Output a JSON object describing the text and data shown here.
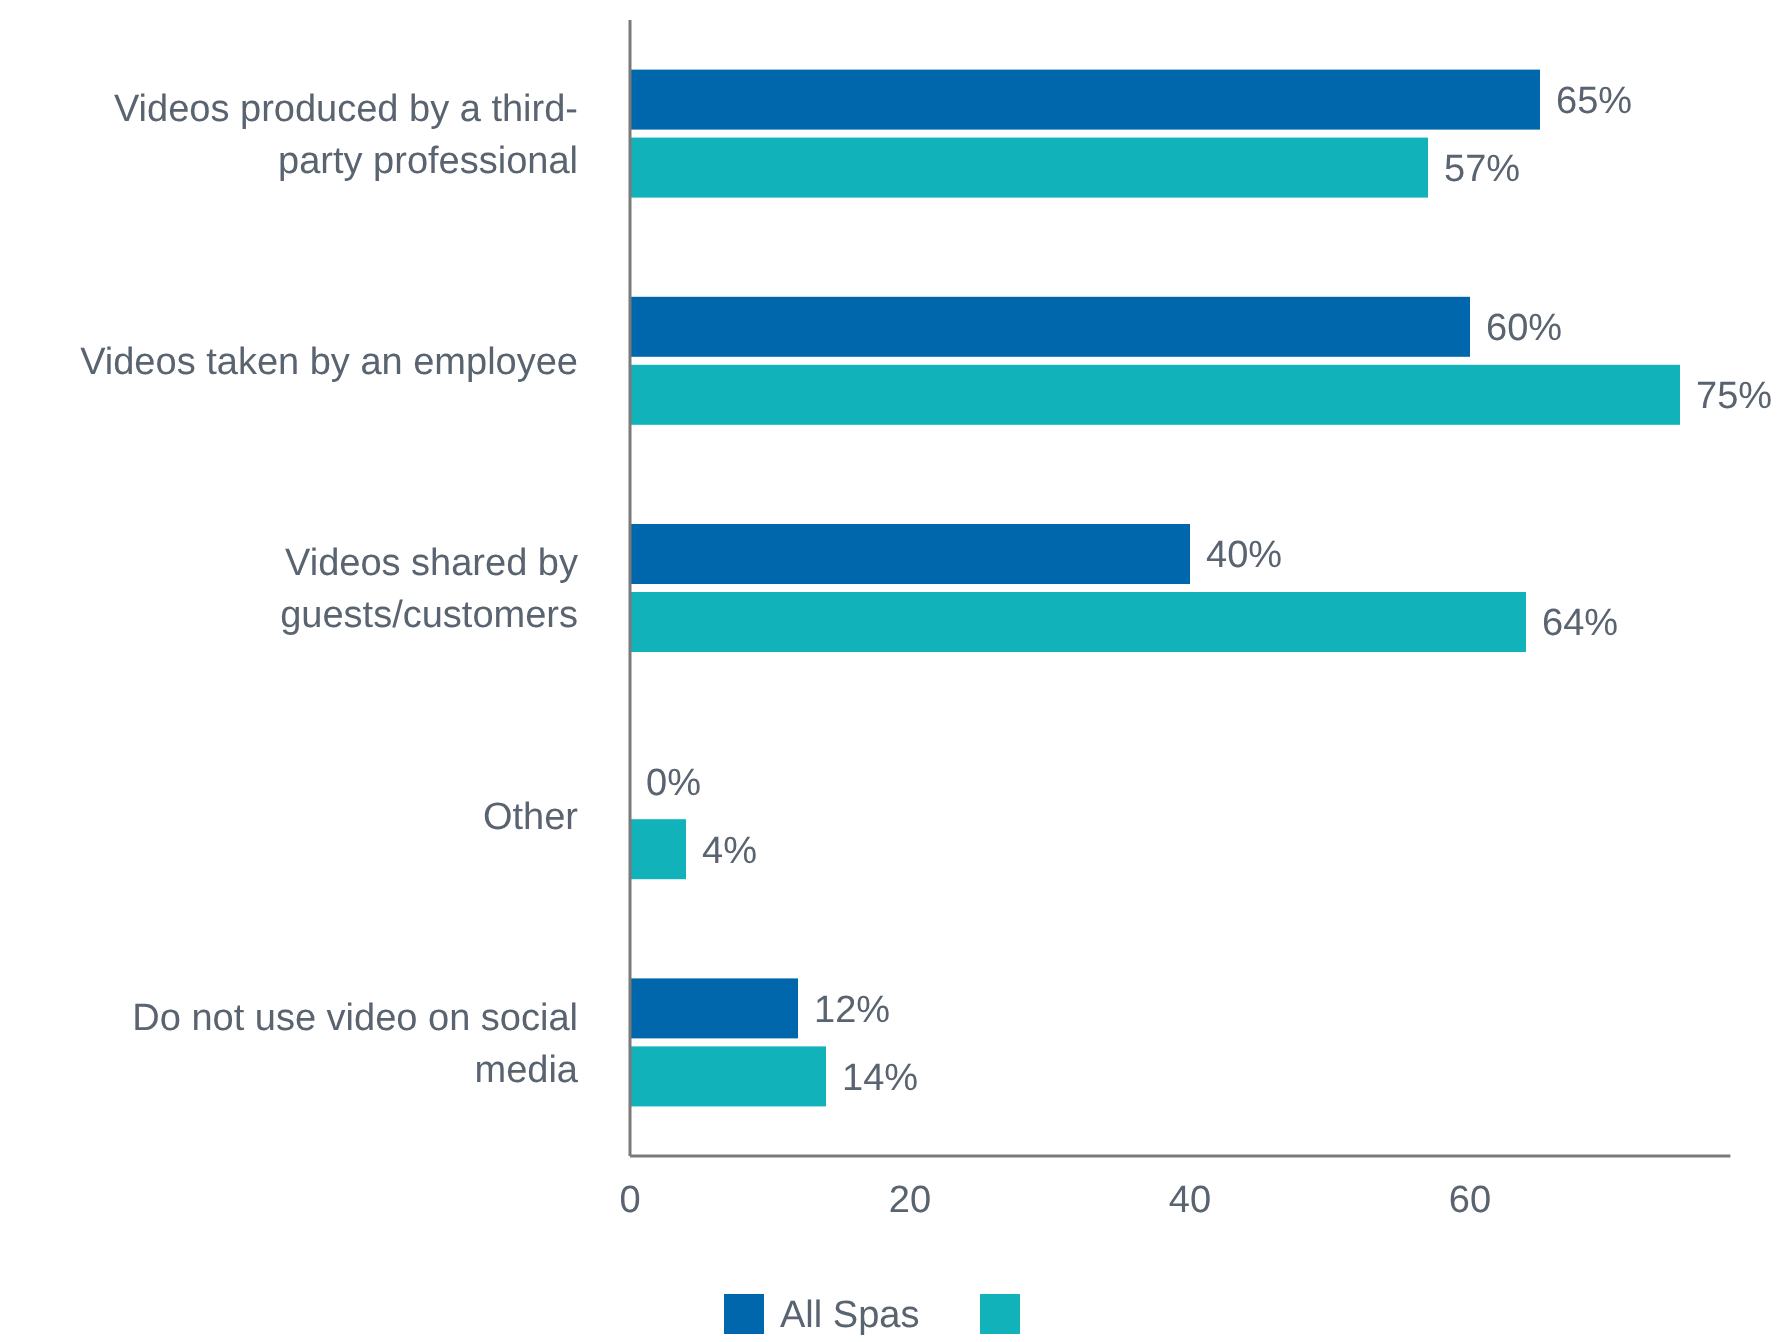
{
  "chart_data": {
    "type": "bar",
    "orientation": "horizontal",
    "categories": [
      "Videos produced by a third-party professional",
      "Videos taken by an employee",
      "Videos shared by guests/customers",
      "Other",
      "Do not use video on social media"
    ],
    "series": [
      {
        "name": "All Spas",
        "color": "#0067ad",
        "values": [
          65,
          60,
          40,
          0,
          12
        ],
        "value_labels": [
          "65%",
          "60%",
          "40%",
          "0%",
          "12%"
        ]
      },
      {
        "color": "#12b2ba",
        "values": [
          57,
          75,
          64,
          4,
          14
        ],
        "value_labels": [
          "57%",
          "75%",
          "64%",
          "4%",
          "14%"
        ]
      }
    ],
    "xlim": [
      0,
      78.6
    ],
    "xticks": [
      0,
      20,
      40,
      60
    ],
    "grid": false,
    "legend": "bottom"
  }
}
